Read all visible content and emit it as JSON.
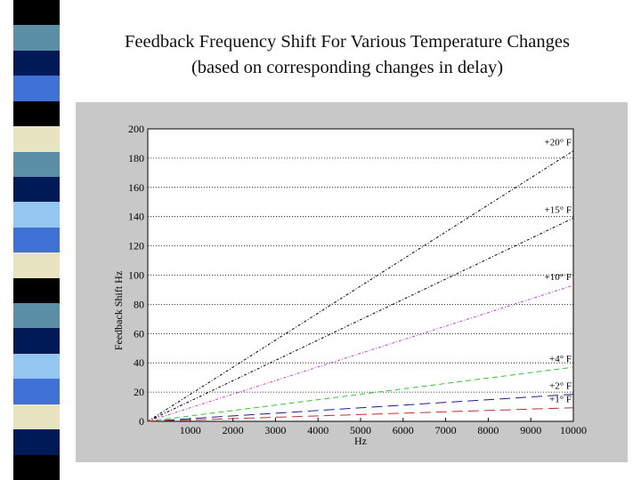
{
  "slide": {
    "title_line1": "Feedback Frequency Shift For Various Temperature Changes",
    "title_line2": "(based on corresponding changes in delay)",
    "stripe_colors": [
      "#000000",
      "#5b8fa8",
      "#001a57",
      "#3f72d4",
      "#000000",
      "#e8e3c0",
      "#5b8fa8",
      "#001a57",
      "#93c7f2",
      "#3f72d4",
      "#e8e3c0",
      "#000000",
      "#5b8fa8",
      "#001a57",
      "#93c7f2",
      "#3f72d4",
      "#e8e3c0",
      "#001a57",
      "#000000"
    ]
  },
  "chart_data": {
    "type": "line",
    "xlabel": "Hz",
    "ylabel": "Feedback Shift Hz",
    "xlim": [
      0,
      10000
    ],
    "ylim": [
      0,
      200
    ],
    "xticks": [
      1000,
      2000,
      3000,
      4000,
      5000,
      6000,
      7000,
      8000,
      9000,
      10000
    ],
    "xtick_labels": [
      "1000",
      "2000",
      "3000",
      "4000",
      "5000",
      "6000",
      "7000",
      "8000",
      "9000",
      "10000"
    ],
    "yticks": [
      0,
      20,
      40,
      60,
      80,
      100,
      120,
      140,
      160,
      180,
      200
    ],
    "ytick_labels": [
      "0",
      "20",
      "40",
      "60",
      "80",
      "100",
      "120",
      "140",
      "160",
      "180",
      "200"
    ],
    "grid": "horizontal dotted",
    "series": [
      {
        "name": "+20° F",
        "x": [
          0,
          10000
        ],
        "y": [
          0,
          185
        ],
        "color": "#000000",
        "dash": "3,2,1,2"
      },
      {
        "name": "+15° F",
        "x": [
          0,
          10000
        ],
        "y": [
          0,
          139
        ],
        "color": "#000000",
        "dash": "3,2,1,2"
      },
      {
        "name": "+10° F",
        "x": [
          0,
          10000
        ],
        "y": [
          0,
          93
        ],
        "color": "#c040c8",
        "dash": "3,2,1,2"
      },
      {
        "name": "+4° F",
        "x": [
          0,
          10000
        ],
        "y": [
          0,
          37
        ],
        "color": "#2fc42f",
        "dash": "6,4"
      },
      {
        "name": "+2° F",
        "x": [
          0,
          10000
        ],
        "y": [
          0,
          18.5
        ],
        "color": "#1c1c8c",
        "dash": "12,6"
      },
      {
        "name": "+1° F",
        "x": [
          0,
          10000
        ],
        "y": [
          0,
          9.3
        ],
        "color": "#c03030",
        "dash": "12,6"
      }
    ]
  }
}
